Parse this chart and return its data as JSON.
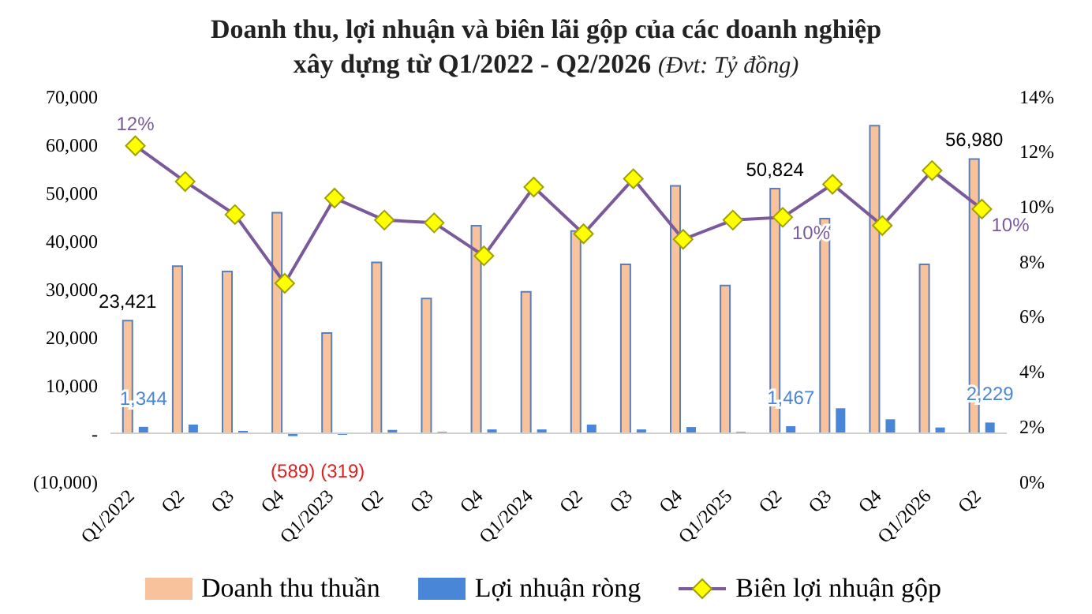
{
  "chart_data": {
    "type": "bar",
    "title": "Doanh thu, lợi nhuận và biên lãi gộp của các doanh nghiệp xây dựng từ Q1/2022 - Q2/2026",
    "subtitle": "(Đvt: Tỷ đồng)",
    "categories": [
      "Q1/2022",
      "Q2",
      "Q3",
      "Q4",
      "Q1/2023",
      "Q2",
      "Q3",
      "Q4",
      "Q1/2024",
      "Q2",
      "Q3",
      "Q4",
      "Q1/2025",
      "Q2",
      "Q3",
      "Q4",
      "Q1/2026",
      "Q2"
    ],
    "series": [
      {
        "name": "Doanh thu thuần",
        "color": "#f8c39c",
        "values": [
          23421,
          34700,
          33600,
          45800,
          20800,
          35500,
          28000,
          43100,
          29400,
          42000,
          35100,
          51400,
          30700,
          50824,
          44600,
          63900,
          35100,
          56980
        ],
        "value_labels": [
          "23,421",
          null,
          null,
          null,
          null,
          null,
          null,
          null,
          null,
          null,
          null,
          null,
          null,
          "50,824",
          null,
          null,
          null,
          "56,980"
        ]
      },
      {
        "name": "Lợi nhuận ròng",
        "color": "#4a86d8",
        "values": [
          1344,
          1800,
          500,
          -589,
          -319,
          700,
          300,
          800,
          800,
          1800,
          800,
          1300,
          300,
          1467,
          5200,
          2900,
          1200,
          2229
        ],
        "value_labels": [
          "1,344",
          null,
          null,
          "(589)",
          "(319)",
          null,
          null,
          null,
          null,
          null,
          null,
          null,
          null,
          "1,467",
          null,
          null,
          null,
          "2,229"
        ]
      },
      {
        "name": "Biên lợi nhuận gộp",
        "type": "line",
        "axis": "y2",
        "color": "#7a5a9a",
        "marker": "diamond",
        "values": [
          12.2,
          10.9,
          9.7,
          7.2,
          10.3,
          9.5,
          9.4,
          8.2,
          10.7,
          9.0,
          11.0,
          8.8,
          9.5,
          9.6,
          10.8,
          9.3,
          11.3,
          9.9
        ],
        "value_labels": [
          "12%",
          null,
          null,
          null,
          null,
          null,
          null,
          null,
          null,
          null,
          null,
          null,
          null,
          "10%",
          null,
          null,
          null,
          "10%"
        ]
      }
    ],
    "ylim": [
      -10000,
      70000
    ],
    "yticks": [
      {
        "value": -10000,
        "label": "(10,000)"
      },
      {
        "value": 0,
        "label": "-"
      },
      {
        "value": 10000,
        "label": "10,000"
      },
      {
        "value": 20000,
        "label": "20,000"
      },
      {
        "value": 30000,
        "label": "30,000"
      },
      {
        "value": 40000,
        "label": "40,000"
      },
      {
        "value": 50000,
        "label": "50,000"
      },
      {
        "value": 60000,
        "label": "60,000"
      },
      {
        "value": 70000,
        "label": "70,000"
      }
    ],
    "y2lim": [
      0,
      14
    ],
    "y2ticks": [
      {
        "value": 0,
        "label": "0%"
      },
      {
        "value": 2,
        "label": "2%"
      },
      {
        "value": 4,
        "label": "4%"
      },
      {
        "value": 6,
        "label": "6%"
      },
      {
        "value": 8,
        "label": "8%"
      },
      {
        "value": 10,
        "label": "10%"
      },
      {
        "value": 12,
        "label": "12%"
      },
      {
        "value": 14,
        "label": "14%"
      }
    ],
    "ref_lines": [
      {
        "axis": "y",
        "value": 0,
        "color": "#d0d0d0"
      }
    ],
    "legend": "bottom"
  }
}
